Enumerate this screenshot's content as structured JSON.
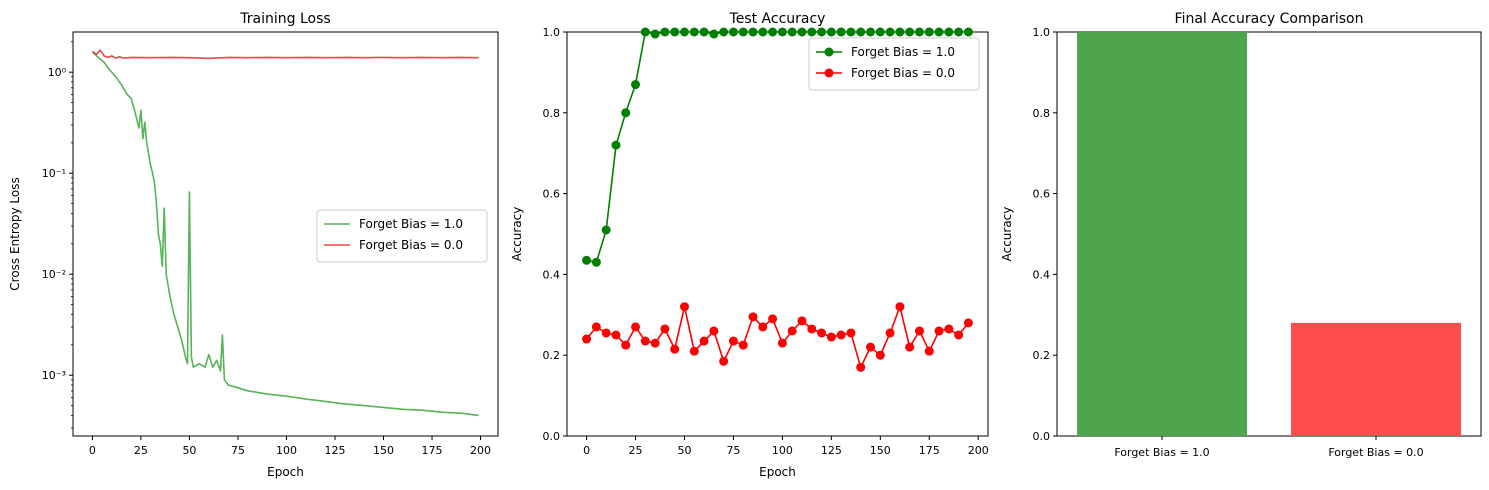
{
  "chart_data": [
    {
      "type": "line",
      "title": "Training Loss",
      "xlabel": "Epoch",
      "ylabel": "Cross Entropy Loss",
      "yscale": "log",
      "xlim": [
        -10,
        209
      ],
      "ylim": [
        0.00025,
        2.5
      ],
      "xticks": [
        0,
        25,
        50,
        75,
        100,
        125,
        150,
        175,
        200
      ],
      "yticks": [
        {
          "value": 0.001,
          "label": "10⁻³"
        },
        {
          "value": 0.01,
          "label": "10⁻²"
        },
        {
          "value": 0.1,
          "label": "10⁻¹"
        },
        {
          "value": 1,
          "label": "10⁰"
        }
      ],
      "grid": false,
      "legend_position": "center-right",
      "series": [
        {
          "name": "Forget Bias = 1.0",
          "color": "#2ca02c",
          "points": [
            [
              0,
              1.6
            ],
            [
              3,
              1.4
            ],
            [
              6,
              1.25
            ],
            [
              9,
              1.05
            ],
            [
              12,
              0.9
            ],
            [
              15,
              0.75
            ],
            [
              18,
              0.6
            ],
            [
              20,
              0.55
            ],
            [
              22,
              0.4
            ],
            [
              24,
              0.28
            ],
            [
              25,
              0.42
            ],
            [
              26,
              0.22
            ],
            [
              27,
              0.32
            ],
            [
              28,
              0.2
            ],
            [
              30,
              0.12
            ],
            [
              31,
              0.1
            ],
            [
              32,
              0.08
            ],
            [
              33,
              0.05
            ],
            [
              34,
              0.025
            ],
            [
              35,
              0.02
            ],
            [
              36,
              0.012
            ],
            [
              37,
              0.045
            ],
            [
              38,
              0.01
            ],
            [
              40,
              0.006
            ],
            [
              42,
              0.004
            ],
            [
              44,
              0.003
            ],
            [
              46,
              0.0022
            ],
            [
              48,
              0.0015
            ],
            [
              49,
              0.0013
            ],
            [
              50,
              0.065
            ],
            [
              51,
              0.0015
            ],
            [
              52,
              0.0012
            ],
            [
              55,
              0.0013
            ],
            [
              58,
              0.0012
            ],
            [
              60,
              0.0016
            ],
            [
              62,
              0.0012
            ],
            [
              64,
              0.0014
            ],
            [
              66,
              0.0011
            ],
            [
              67,
              0.0025
            ],
            [
              68,
              0.0009
            ],
            [
              70,
              0.0008
            ],
            [
              75,
              0.00075
            ],
            [
              80,
              0.0007
            ],
            [
              90,
              0.00065
            ],
            [
              100,
              0.00062
            ],
            [
              110,
              0.00058
            ],
            [
              120,
              0.00055
            ],
            [
              130,
              0.00052
            ],
            [
              140,
              0.0005
            ],
            [
              150,
              0.00048
            ],
            [
              160,
              0.00046
            ],
            [
              170,
              0.00045
            ],
            [
              180,
              0.00043
            ],
            [
              190,
              0.00042
            ],
            [
              199,
              0.0004
            ]
          ]
        },
        {
          "name": "Forget Bias = 0.0",
          "color": "#e41a1c",
          "points": [
            [
              0,
              1.6
            ],
            [
              2,
              1.5
            ],
            [
              4,
              1.65
            ],
            [
              6,
              1.45
            ],
            [
              8,
              1.4
            ],
            [
              10,
              1.45
            ],
            [
              12,
              1.38
            ],
            [
              14,
              1.42
            ],
            [
              16,
              1.38
            ],
            [
              20,
              1.4
            ],
            [
              30,
              1.39
            ],
            [
              40,
              1.4
            ],
            [
              50,
              1.39
            ],
            [
              60,
              1.37
            ],
            [
              70,
              1.4
            ],
            [
              80,
              1.39
            ],
            [
              90,
              1.4
            ],
            [
              100,
              1.39
            ],
            [
              110,
              1.4
            ],
            [
              120,
              1.39
            ],
            [
              130,
              1.4
            ],
            [
              140,
              1.39
            ],
            [
              150,
              1.4
            ],
            [
              160,
              1.39
            ],
            [
              170,
              1.4
            ],
            [
              180,
              1.39
            ],
            [
              190,
              1.4
            ],
            [
              199,
              1.39
            ]
          ]
        }
      ]
    },
    {
      "type": "line",
      "title": "Test Accuracy",
      "xlabel": "Epoch",
      "ylabel": "Accuracy",
      "xlim": [
        -10,
        205
      ],
      "ylim": [
        0,
        1
      ],
      "xticks": [
        0,
        25,
        50,
        75,
        100,
        125,
        150,
        175,
        200
      ],
      "yticks": [
        0,
        0.2,
        0.4,
        0.6,
        0.8,
        1.0
      ],
      "grid": false,
      "legend_position": "top-right",
      "x": [
        0,
        5,
        10,
        15,
        20,
        25,
        30,
        35,
        40,
        45,
        50,
        55,
        60,
        65,
        70,
        75,
        80,
        85,
        90,
        95,
        100,
        105,
        110,
        115,
        120,
        125,
        130,
        135,
        140,
        145,
        150,
        155,
        160,
        165,
        170,
        175,
        180,
        185,
        190,
        195
      ],
      "series": [
        {
          "name": "Forget Bias = 1.0",
          "color": "#008000",
          "values": [
            0.435,
            0.43,
            0.51,
            0.72,
            0.8,
            0.87,
            1.0,
            0.995,
            1.0,
            1.0,
            1.0,
            1.0,
            1.0,
            0.995,
            1.0,
            1.0,
            1.0,
            1.0,
            1.0,
            1.0,
            1.0,
            1.0,
            1.0,
            1.0,
            1.0,
            1.0,
            1.0,
            1.0,
            1.0,
            1.0,
            1.0,
            1.0,
            1.0,
            1.0,
            1.0,
            1.0,
            1.0,
            1.0,
            1.0,
            1.0
          ]
        },
        {
          "name": "Forget Bias = 0.0",
          "color": "#ff0000",
          "values": [
            0.24,
            0.27,
            0.255,
            0.25,
            0.225,
            0.27,
            0.235,
            0.23,
            0.265,
            0.215,
            0.32,
            0.21,
            0.235,
            0.26,
            0.185,
            0.235,
            0.225,
            0.295,
            0.27,
            0.29,
            0.23,
            0.26,
            0.285,
            0.265,
            0.255,
            0.245,
            0.25,
            0.255,
            0.17,
            0.22,
            0.2,
            0.255,
            0.32,
            0.22,
            0.26,
            0.21,
            0.26,
            0.265,
            0.25,
            0.28
          ]
        }
      ]
    },
    {
      "type": "bar",
      "title": "Final Accuracy Comparison",
      "xlabel": "",
      "ylabel": "Accuracy",
      "ylim": [
        0,
        1
      ],
      "yticks": [
        0,
        0.2,
        0.4,
        0.6,
        0.8,
        1.0
      ],
      "grid": false,
      "categories": [
        "Forget Bias = 1.0",
        "Forget Bias = 0.0"
      ],
      "values": [
        1.0,
        0.28
      ],
      "colors": [
        "#4ea54e",
        "#ff4c4c"
      ]
    }
  ]
}
